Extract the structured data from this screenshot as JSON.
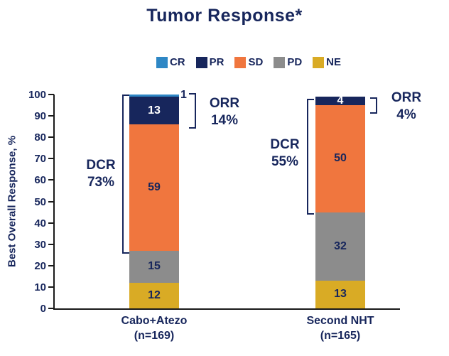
{
  "title": "Tumor Response*",
  "colors": {
    "navy_text": "#17265c",
    "cr_blue": "#2e87c5",
    "pr_navy": "#17265c",
    "sd_orange": "#f0763e",
    "pd_gray": "#8c8c8c",
    "ne_gold": "#d9ab25",
    "axis_black": "#1a1a1a"
  },
  "chart_data": {
    "type": "bar",
    "stacked": true,
    "title": "Tumor Response*",
    "xlabel": "",
    "ylabel": "Best Overall Response, %",
    "ylim": [
      0,
      100
    ],
    "yticks": [
      0,
      10,
      20,
      30,
      40,
      50,
      60,
      70,
      80,
      90,
      100
    ],
    "grid": false,
    "legend_position": "top",
    "legend": [
      {
        "label": "CR",
        "color": "#2e87c5"
      },
      {
        "label": "PR",
        "color": "#17265c"
      },
      {
        "label": "SD",
        "color": "#f0763e"
      },
      {
        "label": "PD",
        "color": "#8c8c8c"
      },
      {
        "label": "NE",
        "color": "#d9ab25"
      }
    ],
    "categories": [
      "Cabo+Atezo (n=169)",
      "Second NHT (n=165)"
    ],
    "series": [
      {
        "name": "CR",
        "color": "#2e87c5",
        "label_color": "#17265c",
        "values": [
          1,
          0
        ]
      },
      {
        "name": "PR",
        "color": "#17265c",
        "label_color": "#ffffff",
        "values": [
          13,
          4
        ]
      },
      {
        "name": "SD",
        "color": "#f0763e",
        "label_color": "#17265c",
        "values": [
          59,
          50
        ]
      },
      {
        "name": "PD",
        "color": "#8c8c8c",
        "label_color": "#17265c",
        "values": [
          15,
          32
        ]
      },
      {
        "name": "NE",
        "color": "#d9ab25",
        "label_color": "#17265c",
        "values": [
          12,
          13
        ]
      }
    ],
    "bars": [
      {
        "label_line1": "Cabo+Atezo",
        "label_line2": "(n=169)",
        "cr_callout": "1",
        "orr_label": "ORR",
        "orr_value": "14%",
        "dcr_label": "DCR",
        "dcr_value": "73%"
      },
      {
        "label_line1": "Second NHT",
        "label_line2": "(n=165)",
        "orr_label": "ORR",
        "orr_value": "4%",
        "dcr_label": "DCR",
        "dcr_value": "55%"
      }
    ]
  }
}
